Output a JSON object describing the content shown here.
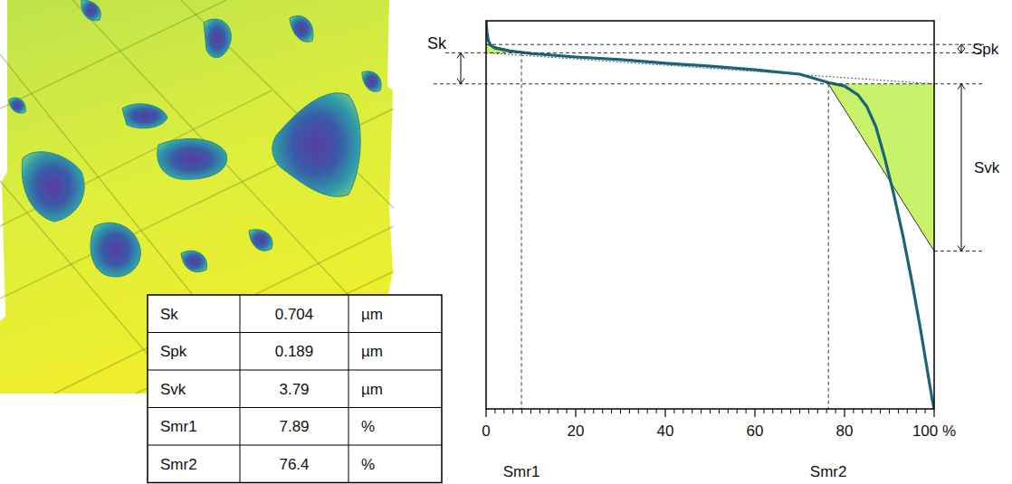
{
  "chart_data": {
    "type": "line",
    "xlim": [
      0,
      100
    ],
    "ylim": [
      0,
      8.8
    ],
    "xticks": [
      0,
      20,
      40,
      60,
      80,
      {
        "value": 100,
        "label": "100 %"
      }
    ],
    "xminor_ticks": [
      2,
      4,
      6,
      8,
      10,
      12,
      14,
      16,
      18,
      22,
      24,
      26,
      28,
      30,
      32,
      34,
      36,
      38,
      42,
      44,
      46,
      48,
      50,
      52,
      54,
      56,
      58,
      62,
      64,
      66,
      68,
      70,
      72,
      74,
      76,
      78,
      82,
      84,
      86,
      88,
      90,
      92,
      94,
      96,
      98
    ],
    "tick_labels": "x",
    "core_bottom": 7.37,
    "annotations": {
      "sk": "Sk",
      "spk": "Spk",
      "svk": "Svk",
      "smr1": "Smr1",
      "smr2": "Smr2"
    },
    "x": [
      0,
      0.2,
      0.5,
      1,
      2,
      5,
      10,
      20,
      30,
      40,
      50,
      60,
      70,
      76.4,
      80,
      83,
      85,
      87,
      89,
      91,
      93,
      95,
      97,
      98.5,
      99.5,
      100
    ],
    "series": [
      {
        "color": "#1a6379",
        "values": [
          8.8,
          8.55,
          8.35,
          8.25,
          8.18,
          8.12,
          8.06,
          7.98,
          7.92,
          7.84,
          7.77,
          7.69,
          7.59,
          7.4,
          7.32,
          7.12,
          6.85,
          6.4,
          5.68,
          4.86,
          3.94,
          2.91,
          1.78,
          0.86,
          0.25,
          0
        ]
      }
    ]
  },
  "table": {
    "rows": [
      [
        "Sk",
        0.704,
        "µm"
      ],
      [
        "Spk",
        0.189,
        "µm"
      ],
      [
        "Svk",
        3.79,
        "µm"
      ],
      [
        "Smr1",
        7.89,
        "%"
      ],
      [
        "Smr2",
        76.4,
        "%"
      ]
    ]
  }
}
